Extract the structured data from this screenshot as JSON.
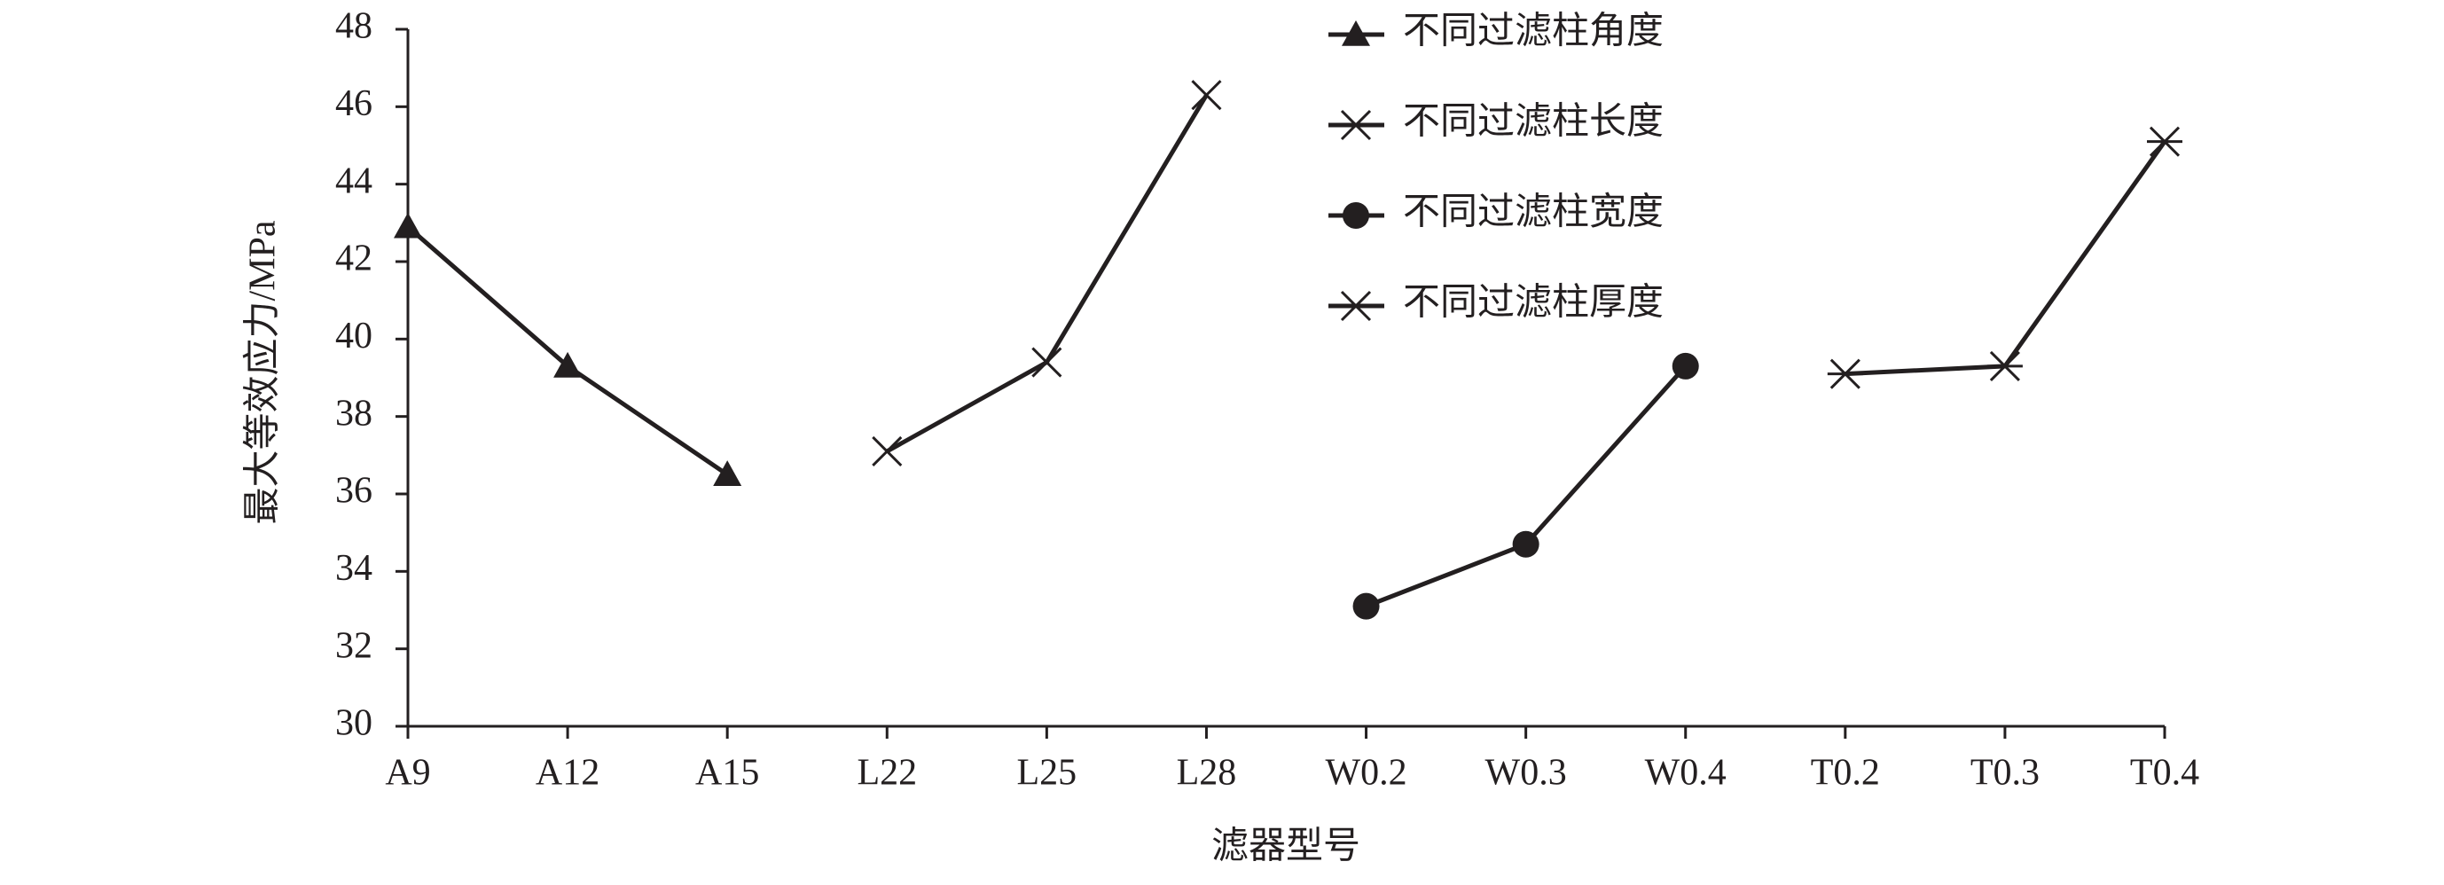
{
  "chart_data": {
    "type": "line",
    "xlabel": "滤器型号",
    "ylabel": "最大等效应力/MPa",
    "categories": [
      "A9",
      "A12",
      "A15",
      "L22",
      "L25",
      "L28",
      "W0.2",
      "W0.3",
      "W0.4",
      "T0.2",
      "T0.3",
      "T0.4"
    ],
    "series": [
      {
        "name": "不同过滤柱角度",
        "color": "#231f20",
        "marker": "triangle",
        "values": [
          42.9,
          39.3,
          36.5,
          null,
          null,
          null,
          null,
          null,
          null,
          null,
          null,
          null
        ]
      },
      {
        "name": "不同过滤柱长度",
        "color": "#231f20",
        "marker": "x",
        "values": [
          null,
          null,
          null,
          37.1,
          39.4,
          46.3,
          null,
          null,
          null,
          null,
          null,
          null
        ]
      },
      {
        "name": "不同过滤柱宽度",
        "color": "#231f20",
        "marker": "circle",
        "values": [
          null,
          null,
          null,
          null,
          null,
          null,
          33.1,
          34.7,
          39.3,
          null,
          null,
          null
        ]
      },
      {
        "name": "不同过滤柱厚度",
        "color": "#231f20",
        "marker": "asterisk",
        "values": [
          null,
          null,
          null,
          null,
          null,
          null,
          null,
          null,
          null,
          39.1,
          39.3,
          45.1
        ]
      }
    ],
    "ylim": [
      30,
      48
    ],
    "yticks": [
      30,
      32,
      34,
      36,
      38,
      40,
      42,
      44,
      46,
      48
    ],
    "grid": false
  }
}
